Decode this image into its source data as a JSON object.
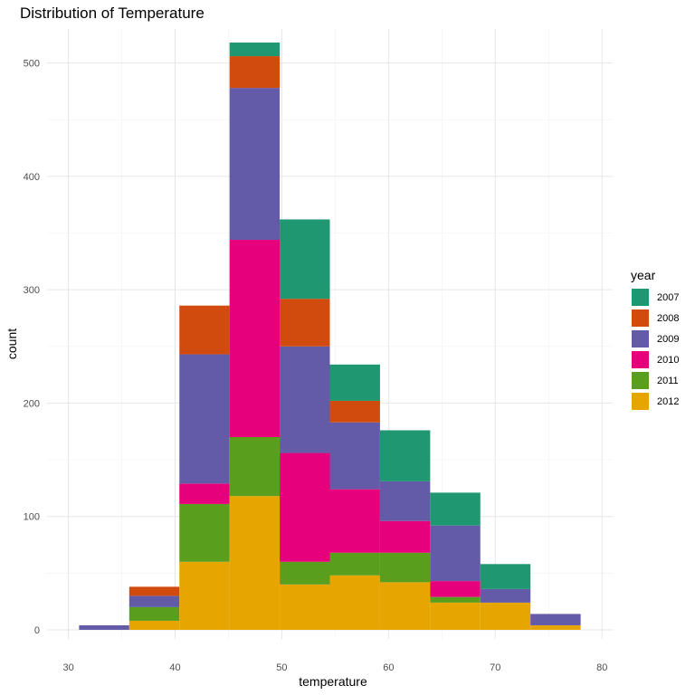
{
  "chart_data": {
    "type": "bar",
    "stacked": true,
    "title": "Distribution of Temperature",
    "xlabel": "temperature",
    "ylabel": "count",
    "xlim": [
      28,
      81
    ],
    "ylim": [
      -8,
      530
    ],
    "xticks": [
      30,
      40,
      50,
      60,
      70,
      80
    ],
    "yticks": [
      0,
      100,
      200,
      300,
      400,
      500
    ],
    "grid": true,
    "legend": {
      "title": "year",
      "position": "right"
    },
    "bins": [
      [
        31.0,
        35.7
      ],
      [
        35.7,
        40.4
      ],
      [
        40.4,
        45.1
      ],
      [
        45.1,
        49.8
      ],
      [
        49.8,
        54.5
      ],
      [
        54.5,
        59.2
      ],
      [
        59.2,
        63.9
      ],
      [
        63.9,
        68.6
      ],
      [
        68.6,
        73.3
      ],
      [
        73.3,
        78.0
      ]
    ],
    "series": [
      {
        "name": "2012",
        "color": "#E6A500",
        "values": [
          0,
          8,
          60,
          118,
          40,
          48,
          42,
          24,
          24,
          4
        ]
      },
      {
        "name": "2011",
        "color": "#5A9E1D",
        "values": [
          0,
          12,
          51,
          52,
          20,
          20,
          26,
          5,
          0,
          0
        ]
      },
      {
        "name": "2010",
        "color": "#E7007B",
        "values": [
          0,
          0,
          18,
          174,
          96,
          56,
          28,
          14,
          0,
          0
        ]
      },
      {
        "name": "2009",
        "color": "#635BA8",
        "values": [
          4,
          10,
          114,
          134,
          94,
          59,
          35,
          49,
          12,
          10
        ]
      },
      {
        "name": "2008",
        "color": "#D14B0E",
        "values": [
          0,
          8,
          43,
          28,
          42,
          19,
          0,
          0,
          0,
          0
        ]
      },
      {
        "name": "2007",
        "color": "#1F9770",
        "values": [
          0,
          0,
          0,
          12,
          70,
          32,
          45,
          29,
          22,
          0
        ]
      }
    ]
  }
}
